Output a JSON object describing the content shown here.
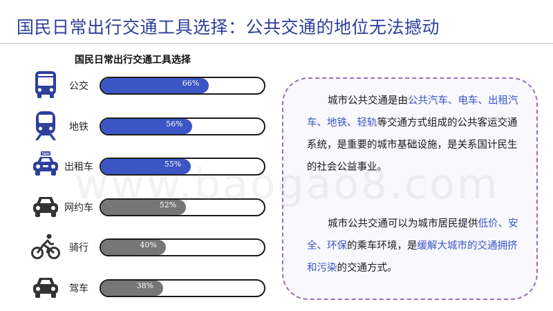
{
  "page": {
    "title": "国民日常出行交通工具选择：公共交通的地位无法撼动"
  },
  "colors": {
    "title": "#2e3f9c",
    "public_fill": "#3b56c4",
    "private_fill": "#767676",
    "icon_public": "#2e3f9c",
    "icon_private": "#333333",
    "highlight": "#3b56c4"
  },
  "chart_data": {
    "type": "bar",
    "title": "国民日常出行交通工具选择",
    "orientation": "horizontal",
    "categories": [
      "公交",
      "地铁",
      "出租车",
      "网约车",
      "骑行",
      "驾车"
    ],
    "values": [
      66,
      56,
      55,
      52,
      40,
      38
    ],
    "value_labels": [
      "66%",
      "56%",
      "55%",
      "52%",
      "40%",
      "38%"
    ],
    "icons": [
      "bus-icon",
      "subway-icon",
      "taxi-icon",
      "car-icon",
      "bicycle-icon",
      "car-icon"
    ],
    "groups": [
      "public",
      "public",
      "public",
      "private",
      "private",
      "private"
    ],
    "xlim": [
      0,
      100
    ],
    "grid": false
  },
  "textbox": {
    "para1": [
      {
        "t": "城市公共交通是由",
        "hl": false
      },
      {
        "t": "公共汽车、电车、出租汽车、地铁、轻轨",
        "hl": true
      },
      {
        "t": "等交通方式组成的公共客运交通系统，是重要的城市基础设施，是关系国计民生的社会公益事业。",
        "hl": false
      }
    ],
    "para2": [
      {
        "t": "城市公共交通可以为城市居民提供",
        "hl": false
      },
      {
        "t": "低价、安全、环保",
        "hl": true
      },
      {
        "t": "的乘车环境，是",
        "hl": false
      },
      {
        "t": "缓解大城市的交通拥挤和污染",
        "hl": true
      },
      {
        "t": "的交通方式。",
        "hl": false
      }
    ]
  },
  "watermark": "www.baogao8.com"
}
